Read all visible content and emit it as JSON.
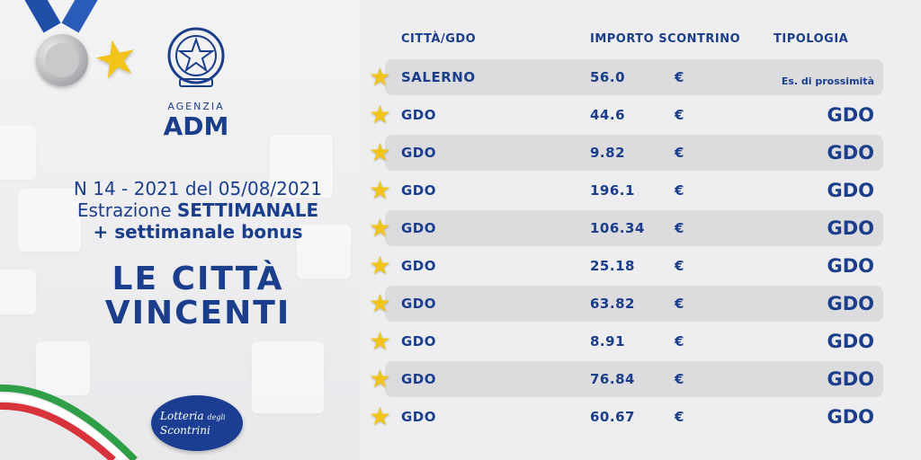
{
  "colors": {
    "brand_blue": "#1a3e8c",
    "star_gold": "#f2c318",
    "row_shade": "#dcdcdf"
  },
  "agency": {
    "sub": "AGENZIA",
    "name": "ADM"
  },
  "draw_info": {
    "line1": "N 14 - 2021 del 05/08/2021",
    "line2_prefix": "Estrazione ",
    "line2_bold": "SETTIMANALE",
    "line3": "+ settimanale bonus"
  },
  "title": {
    "line1": "LE CITTÀ",
    "line2": "VINCENTI"
  },
  "lottery_logo": {
    "line1": "Lotteria",
    "line2": "degli",
    "line3": "Scontrini"
  },
  "table": {
    "headers": {
      "city": "CITTÀ/GDO",
      "amount": "IMPORTO SCONTRINO",
      "type": "TIPOLOGIA"
    },
    "rows": [
      {
        "city": "SALERNO",
        "amount": "56.0",
        "currency": "€",
        "type": "Es. di prossimità"
      },
      {
        "city": "GDO",
        "amount": "44.6",
        "currency": "€",
        "type": "GDO"
      },
      {
        "city": "GDO",
        "amount": "9.82",
        "currency": "€",
        "type": "GDO"
      },
      {
        "city": "GDO",
        "amount": "196.1",
        "currency": "€",
        "type": "GDO"
      },
      {
        "city": "GDO",
        "amount": "106.34",
        "currency": "€",
        "type": "GDO"
      },
      {
        "city": "GDO",
        "amount": "25.18",
        "currency": "€",
        "type": "GDO"
      },
      {
        "city": "GDO",
        "amount": "63.82",
        "currency": "€",
        "type": "GDO"
      },
      {
        "city": "GDO",
        "amount": "8.91",
        "currency": "€",
        "type": "GDO"
      },
      {
        "city": "GDO",
        "amount": "76.84",
        "currency": "€",
        "type": "GDO"
      },
      {
        "city": "GDO",
        "amount": "60.67",
        "currency": "€",
        "type": "GDO"
      }
    ]
  },
  "icons": {
    "medal": "silver-medal-icon",
    "star": "gold-star-icon",
    "emblem": "italian-republic-emblem-icon"
  }
}
